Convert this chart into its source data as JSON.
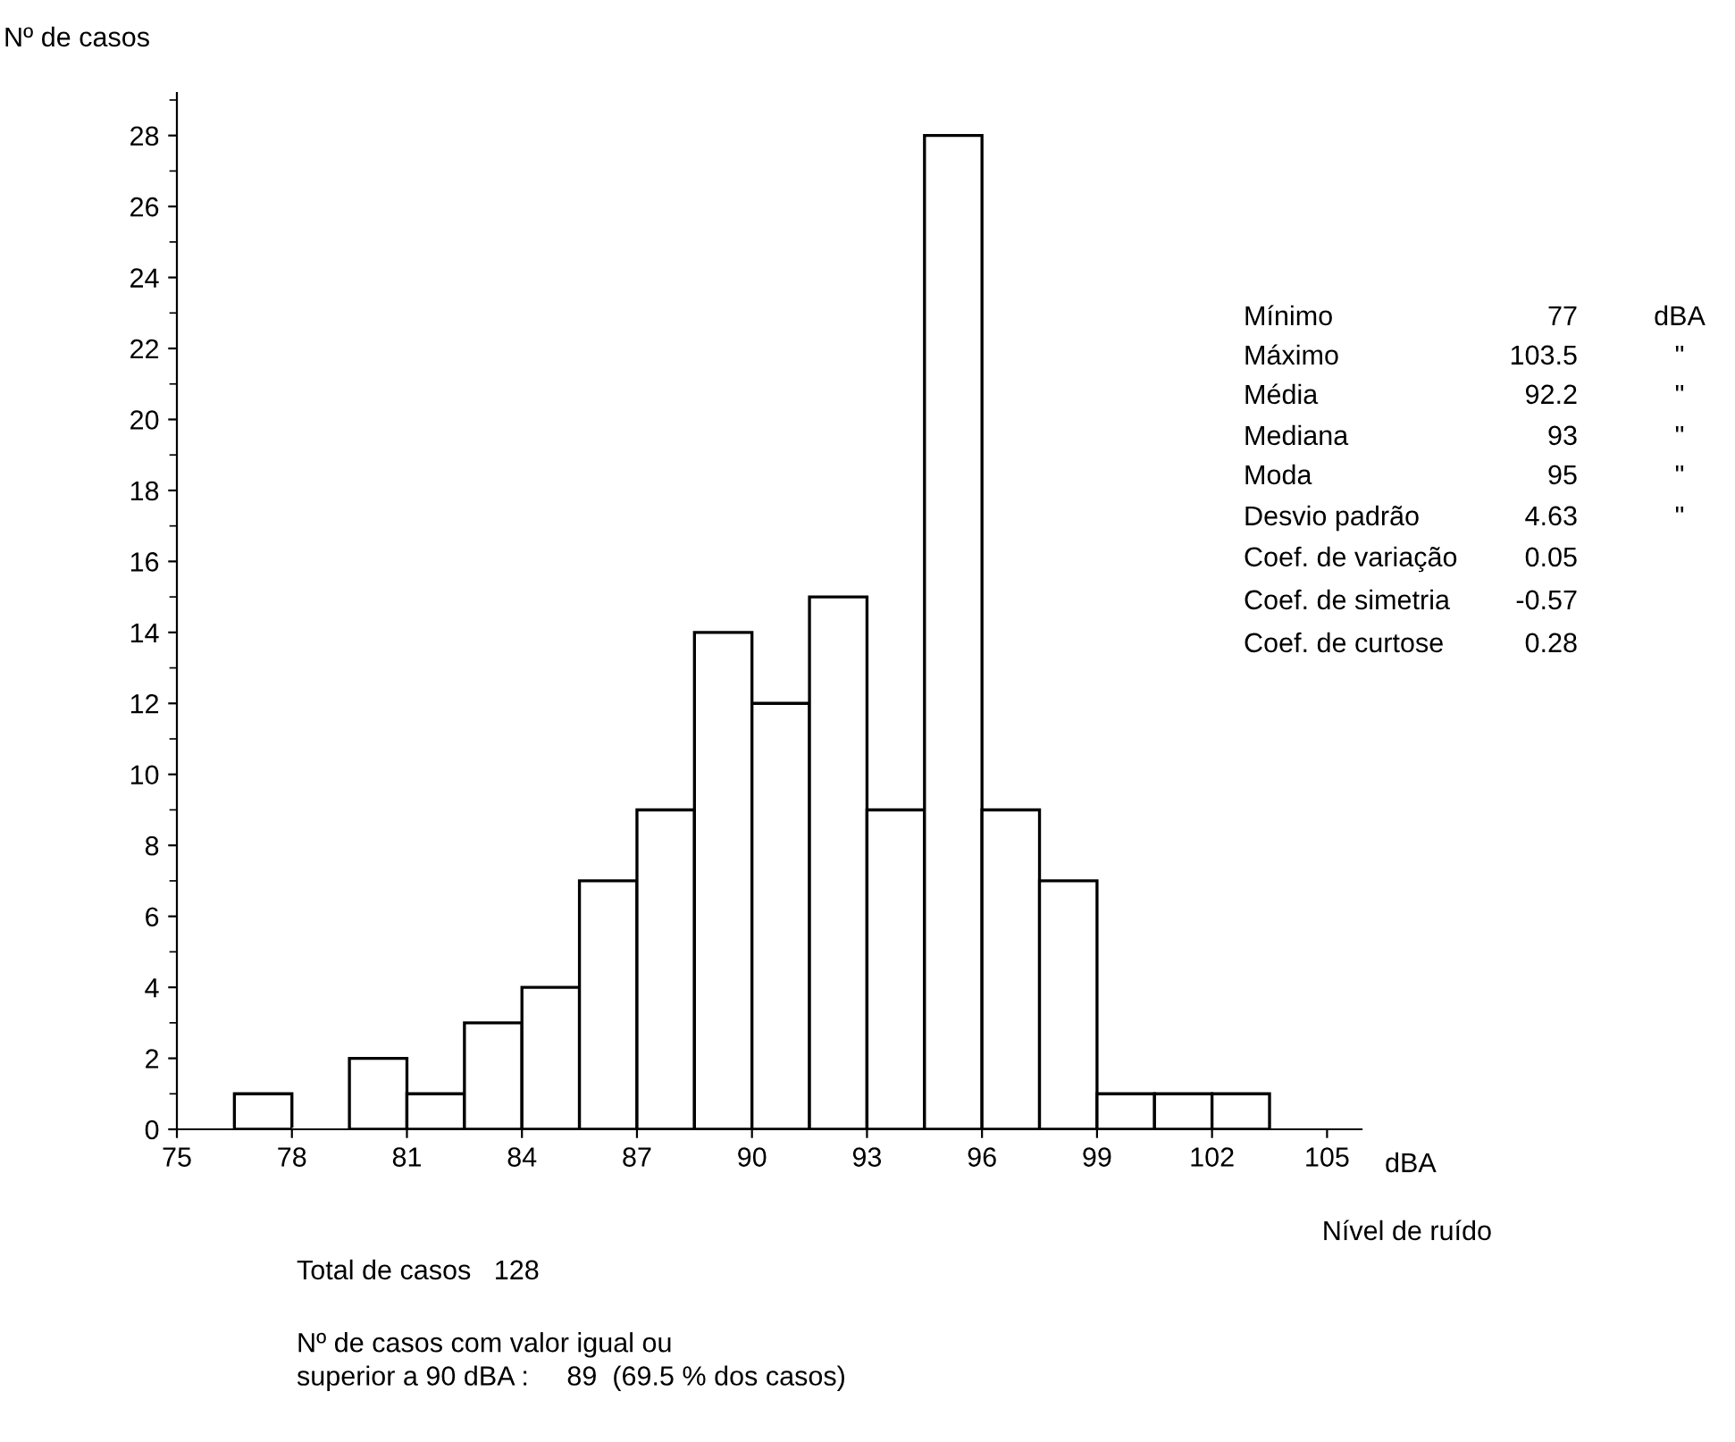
{
  "chart_data": {
    "type": "histogram",
    "ylabel": "Nº de casos",
    "xlabel": "Nível de ruído",
    "bins": [
      76.5,
      78,
      79.5,
      81,
      82.5,
      84,
      85.5,
      87,
      88.5,
      90,
      91.5,
      93,
      94.5,
      96,
      97.5,
      99,
      100.5,
      102,
      103.5
    ],
    "values": [
      1,
      0,
      2,
      1,
      3,
      4,
      7,
      9,
      14,
      12,
      15,
      9,
      28,
      9,
      7,
      1,
      1,
      1
    ],
    "color": "#ffffff",
    "xlim": [
      75,
      105.9
    ],
    "xticks": [
      75,
      78,
      81,
      84,
      87,
      90,
      93,
      96,
      99,
      102,
      105
    ],
    "ylim": [
      0,
      29.2
    ],
    "yticks": [
      0,
      2,
      4,
      6,
      8,
      10,
      12,
      14,
      16,
      18,
      20,
      22,
      24,
      26,
      28
    ],
    "grid": false,
    "annotations": [
      "Mínimo",
      "77",
      "dBA",
      "Máximo",
      "103.5",
      "\"",
      "Média",
      "92.2",
      "\"",
      "Mediana",
      "93",
      "\"",
      "Moda",
      "95",
      "\"",
      "Desvio padrão",
      "4.63",
      "\"",
      "Coef. de variação",
      "0.05",
      "Coef. de simetria",
      "-0.57",
      "Coef. de curtose",
      "0.28",
      "Total de casos   128",
      "Nº de casos com valor igual ou\nsuperior a 90 dBA :     89  (69.5 % dos casos)",
      "dBA"
    ]
  }
}
